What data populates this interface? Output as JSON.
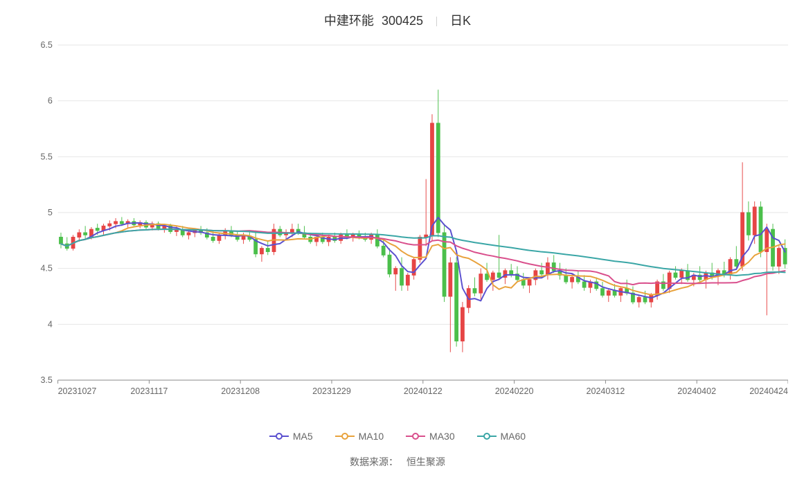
{
  "title": {
    "name": "中建环能",
    "code": "300425",
    "period": "日K",
    "fontsize": 18,
    "color": "#333333"
  },
  "chart": {
    "type": "candlestick+line",
    "background_color": "#ffffff",
    "grid_color": "#e6e6e6",
    "axis_line_color": "#888888",
    "tick_font_color": "#666666",
    "tick_fontsize": 13,
    "y_axis": {
      "min": 3.5,
      "max": 6.5,
      "tick_step": 0.5,
      "ticks": [
        3.5,
        4.0,
        4.5,
        5.0,
        5.5,
        6.0,
        6.5
      ]
    },
    "x_axis": {
      "labels": [
        "20231027",
        "20231117",
        "20231208",
        "20231229",
        "20240122",
        "20240220",
        "20240312",
        "20240402",
        "20240424"
      ]
    },
    "up_color": "#e64545",
    "down_color": "#4bbf4b",
    "candles": [
      {
        "o": 4.78,
        "h": 4.82,
        "l": 4.68,
        "c": 4.72
      },
      {
        "o": 4.72,
        "h": 4.78,
        "l": 4.66,
        "c": 4.68
      },
      {
        "o": 4.68,
        "h": 4.8,
        "l": 4.66,
        "c": 4.78
      },
      {
        "o": 4.78,
        "h": 4.85,
        "l": 4.74,
        "c": 4.82
      },
      {
        "o": 4.82,
        "h": 4.88,
        "l": 4.76,
        "c": 4.8
      },
      {
        "o": 4.78,
        "h": 4.87,
        "l": 4.76,
        "c": 4.85
      },
      {
        "o": 4.86,
        "h": 4.9,
        "l": 4.8,
        "c": 4.84
      },
      {
        "o": 4.84,
        "h": 4.9,
        "l": 4.8,
        "c": 4.88
      },
      {
        "o": 4.88,
        "h": 4.93,
        "l": 4.84,
        "c": 4.9
      },
      {
        "o": 4.9,
        "h": 4.95,
        "l": 4.86,
        "c": 4.92
      },
      {
        "o": 4.92,
        "h": 4.96,
        "l": 4.88,
        "c": 4.9
      },
      {
        "o": 4.9,
        "h": 4.94,
        "l": 4.86,
        "c": 4.92
      },
      {
        "o": 4.92,
        "h": 4.95,
        "l": 4.88,
        "c": 4.89
      },
      {
        "o": 4.89,
        "h": 4.93,
        "l": 4.86,
        "c": 4.91
      },
      {
        "o": 4.91,
        "h": 4.93,
        "l": 4.85,
        "c": 4.87
      },
      {
        "o": 4.87,
        "h": 4.92,
        "l": 4.84,
        "c": 4.9
      },
      {
        "o": 4.9,
        "h": 4.92,
        "l": 4.84,
        "c": 4.86
      },
      {
        "o": 4.86,
        "h": 4.9,
        "l": 4.82,
        "c": 4.88
      },
      {
        "o": 4.88,
        "h": 4.9,
        "l": 4.81,
        "c": 4.83
      },
      {
        "o": 4.83,
        "h": 4.88,
        "l": 4.79,
        "c": 4.85
      },
      {
        "o": 4.85,
        "h": 4.88,
        "l": 4.78,
        "c": 4.8
      },
      {
        "o": 4.8,
        "h": 4.85,
        "l": 4.76,
        "c": 4.82
      },
      {
        "o": 4.82,
        "h": 4.86,
        "l": 4.78,
        "c": 4.84
      },
      {
        "o": 4.84,
        "h": 4.88,
        "l": 4.8,
        "c": 4.82
      },
      {
        "o": 4.82,
        "h": 4.86,
        "l": 4.76,
        "c": 4.78
      },
      {
        "o": 4.78,
        "h": 4.84,
        "l": 4.73,
        "c": 4.75
      },
      {
        "o": 4.75,
        "h": 4.82,
        "l": 4.72,
        "c": 4.8
      },
      {
        "o": 4.8,
        "h": 4.86,
        "l": 4.76,
        "c": 4.83
      },
      {
        "o": 4.83,
        "h": 4.88,
        "l": 4.78,
        "c": 4.8
      },
      {
        "o": 4.8,
        "h": 4.84,
        "l": 4.74,
        "c": 4.76
      },
      {
        "o": 4.76,
        "h": 4.82,
        "l": 4.72,
        "c": 4.79
      },
      {
        "o": 4.79,
        "h": 4.84,
        "l": 4.74,
        "c": 4.76
      },
      {
        "o": 4.76,
        "h": 4.84,
        "l": 4.6,
        "c": 4.63
      },
      {
        "o": 4.63,
        "h": 4.7,
        "l": 4.56,
        "c": 4.68
      },
      {
        "o": 4.68,
        "h": 4.74,
        "l": 4.62,
        "c": 4.65
      },
      {
        "o": 4.65,
        "h": 4.9,
        "l": 4.62,
        "c": 4.85
      },
      {
        "o": 4.85,
        "h": 4.88,
        "l": 4.78,
        "c": 4.8
      },
      {
        "o": 4.8,
        "h": 4.85,
        "l": 4.75,
        "c": 4.82
      },
      {
        "o": 4.82,
        "h": 4.9,
        "l": 4.78,
        "c": 4.85
      },
      {
        "o": 4.85,
        "h": 4.9,
        "l": 4.8,
        "c": 4.82
      },
      {
        "o": 4.82,
        "h": 4.88,
        "l": 4.76,
        "c": 4.78
      },
      {
        "o": 4.78,
        "h": 4.82,
        "l": 4.72,
        "c": 4.74
      },
      {
        "o": 4.74,
        "h": 4.8,
        "l": 4.7,
        "c": 4.78
      },
      {
        "o": 4.78,
        "h": 4.82,
        "l": 4.72,
        "c": 4.74
      },
      {
        "o": 4.74,
        "h": 4.8,
        "l": 4.7,
        "c": 4.78
      },
      {
        "o": 4.78,
        "h": 4.82,
        "l": 4.73,
        "c": 4.75
      },
      {
        "o": 4.75,
        "h": 4.82,
        "l": 4.72,
        "c": 4.8
      },
      {
        "o": 4.8,
        "h": 4.85,
        "l": 4.76,
        "c": 4.78
      },
      {
        "o": 4.78,
        "h": 4.82,
        "l": 4.74,
        "c": 4.8
      },
      {
        "o": 4.8,
        "h": 4.84,
        "l": 4.76,
        "c": 4.78
      },
      {
        "o": 4.78,
        "h": 4.82,
        "l": 4.74,
        "c": 4.76
      },
      {
        "o": 4.76,
        "h": 4.82,
        "l": 4.72,
        "c": 4.8
      },
      {
        "o": 4.8,
        "h": 4.85,
        "l": 4.68,
        "c": 4.7
      },
      {
        "o": 4.7,
        "h": 4.75,
        "l": 4.6,
        "c": 4.62
      },
      {
        "o": 4.62,
        "h": 4.68,
        "l": 4.42,
        "c": 4.45
      },
      {
        "o": 4.45,
        "h": 4.52,
        "l": 4.3,
        "c": 4.5
      },
      {
        "o": 4.5,
        "h": 4.6,
        "l": 4.3,
        "c": 4.35
      },
      {
        "o": 4.35,
        "h": 4.46,
        "l": 4.3,
        "c": 4.44
      },
      {
        "o": 4.44,
        "h": 4.6,
        "l": 4.4,
        "c": 4.58
      },
      {
        "o": 4.58,
        "h": 4.8,
        "l": 4.55,
        "c": 4.78
      },
      {
        "o": 4.78,
        "h": 5.3,
        "l": 4.7,
        "c": 4.8
      },
      {
        "o": 4.8,
        "h": 5.88,
        "l": 4.75,
        "c": 5.8
      },
      {
        "o": 5.8,
        "h": 6.1,
        "l": 4.78,
        "c": 4.82
      },
      {
        "o": 4.82,
        "h": 4.9,
        "l": 4.2,
        "c": 4.25
      },
      {
        "o": 4.25,
        "h": 4.6,
        "l": 3.75,
        "c": 4.55
      },
      {
        "o": 4.55,
        "h": 4.6,
        "l": 3.8,
        "c": 3.85
      },
      {
        "o": 3.85,
        "h": 4.2,
        "l": 3.75,
        "c": 4.15
      },
      {
        "o": 4.15,
        "h": 4.35,
        "l": 4.1,
        "c": 4.32
      },
      {
        "o": 4.32,
        "h": 4.42,
        "l": 4.25,
        "c": 4.28
      },
      {
        "o": 4.28,
        "h": 4.5,
        "l": 4.22,
        "c": 4.45
      },
      {
        "o": 4.45,
        "h": 4.55,
        "l": 4.38,
        "c": 4.4
      },
      {
        "o": 4.4,
        "h": 4.48,
        "l": 4.3,
        "c": 4.46
      },
      {
        "o": 4.46,
        "h": 4.8,
        "l": 4.4,
        "c": 4.42
      },
      {
        "o": 4.42,
        "h": 4.5,
        "l": 4.36,
        "c": 4.48
      },
      {
        "o": 4.48,
        "h": 4.54,
        "l": 4.42,
        "c": 4.45
      },
      {
        "o": 4.45,
        "h": 4.52,
        "l": 4.38,
        "c": 4.4
      },
      {
        "o": 4.4,
        "h": 4.46,
        "l": 4.32,
        "c": 4.35
      },
      {
        "o": 4.35,
        "h": 4.42,
        "l": 4.28,
        "c": 4.4
      },
      {
        "o": 4.4,
        "h": 4.5,
        "l": 4.35,
        "c": 4.48
      },
      {
        "o": 4.48,
        "h": 4.55,
        "l": 4.42,
        "c": 4.45
      },
      {
        "o": 4.45,
        "h": 4.6,
        "l": 4.4,
        "c": 4.55
      },
      {
        "o": 4.55,
        "h": 4.62,
        "l": 4.46,
        "c": 4.48
      },
      {
        "o": 4.48,
        "h": 4.55,
        "l": 4.4,
        "c": 4.44
      },
      {
        "o": 4.44,
        "h": 4.5,
        "l": 4.36,
        "c": 4.38
      },
      {
        "o": 4.38,
        "h": 4.45,
        "l": 4.32,
        "c": 4.42
      },
      {
        "o": 4.42,
        "h": 4.48,
        "l": 4.36,
        "c": 4.38
      },
      {
        "o": 4.38,
        "h": 4.44,
        "l": 4.3,
        "c": 4.33
      },
      {
        "o": 4.33,
        "h": 4.4,
        "l": 4.28,
        "c": 4.38
      },
      {
        "o": 4.38,
        "h": 4.42,
        "l": 4.3,
        "c": 4.32
      },
      {
        "o": 4.32,
        "h": 4.38,
        "l": 4.24,
        "c": 4.26
      },
      {
        "o": 4.26,
        "h": 4.32,
        "l": 4.2,
        "c": 4.3
      },
      {
        "o": 4.3,
        "h": 4.36,
        "l": 4.24,
        "c": 4.26
      },
      {
        "o": 4.26,
        "h": 4.34,
        "l": 4.2,
        "c": 4.32
      },
      {
        "o": 4.32,
        "h": 4.4,
        "l": 4.26,
        "c": 4.28
      },
      {
        "o": 4.28,
        "h": 4.34,
        "l": 4.18,
        "c": 4.2
      },
      {
        "o": 4.2,
        "h": 4.26,
        "l": 4.15,
        "c": 4.24
      },
      {
        "o": 4.24,
        "h": 4.3,
        "l": 4.18,
        "c": 4.2
      },
      {
        "o": 4.2,
        "h": 4.28,
        "l": 4.15,
        "c": 4.26
      },
      {
        "o": 4.26,
        "h": 4.4,
        "l": 4.22,
        "c": 4.38
      },
      {
        "o": 4.38,
        "h": 4.45,
        "l": 4.3,
        "c": 4.32
      },
      {
        "o": 4.32,
        "h": 4.48,
        "l": 4.28,
        "c": 4.46
      },
      {
        "o": 4.46,
        "h": 4.52,
        "l": 4.4,
        "c": 4.42
      },
      {
        "o": 4.42,
        "h": 4.5,
        "l": 4.36,
        "c": 4.48
      },
      {
        "o": 4.48,
        "h": 4.54,
        "l": 4.38,
        "c": 4.4
      },
      {
        "o": 4.4,
        "h": 4.46,
        "l": 4.34,
        "c": 4.44
      },
      {
        "o": 4.44,
        "h": 4.52,
        "l": 4.38,
        "c": 4.4
      },
      {
        "o": 4.4,
        "h": 4.48,
        "l": 4.32,
        "c": 4.46
      },
      {
        "o": 4.46,
        "h": 4.55,
        "l": 4.4,
        "c": 4.43
      },
      {
        "o": 4.43,
        "h": 4.5,
        "l": 4.35,
        "c": 4.48
      },
      {
        "o": 4.48,
        "h": 4.56,
        "l": 4.42,
        "c": 4.45
      },
      {
        "o": 4.45,
        "h": 4.6,
        "l": 4.4,
        "c": 4.58
      },
      {
        "o": 4.58,
        "h": 4.7,
        "l": 4.5,
        "c": 4.52
      },
      {
        "o": 4.52,
        "h": 5.45,
        "l": 4.48,
        "c": 5.0
      },
      {
        "o": 5.0,
        "h": 5.1,
        "l": 4.75,
        "c": 4.8
      },
      {
        "o": 4.8,
        "h": 5.1,
        "l": 4.72,
        "c": 5.05
      },
      {
        "o": 5.05,
        "h": 5.1,
        "l": 4.6,
        "c": 4.65
      },
      {
        "o": 4.65,
        "h": 4.9,
        "l": 4.08,
        "c": 4.85
      },
      {
        "o": 4.85,
        "h": 4.9,
        "l": 4.48,
        "c": 4.52
      },
      {
        "o": 4.52,
        "h": 4.7,
        "l": 4.45,
        "c": 4.68
      },
      {
        "o": 4.68,
        "h": 4.76,
        "l": 4.5,
        "c": 4.54
      }
    ],
    "lines": {
      "MA5": {
        "color": "#5a4fcf",
        "width": 2
      },
      "MA10": {
        "color": "#e8a23c",
        "width": 2
      },
      "MA30": {
        "color": "#d94f8c",
        "width": 2
      },
      "MA60": {
        "color": "#3aa6a6",
        "width": 2
      }
    }
  },
  "legend": {
    "items": [
      {
        "key": "MA5",
        "label": "MA5",
        "color": "#5a4fcf"
      },
      {
        "key": "MA10",
        "label": "MA10",
        "color": "#e8a23c"
      },
      {
        "key": "MA30",
        "label": "MA30",
        "color": "#d94f8c"
      },
      {
        "key": "MA60",
        "label": "MA60",
        "color": "#3aa6a6"
      }
    ]
  },
  "source": {
    "label": "数据来源：",
    "value": "恒生聚源"
  }
}
